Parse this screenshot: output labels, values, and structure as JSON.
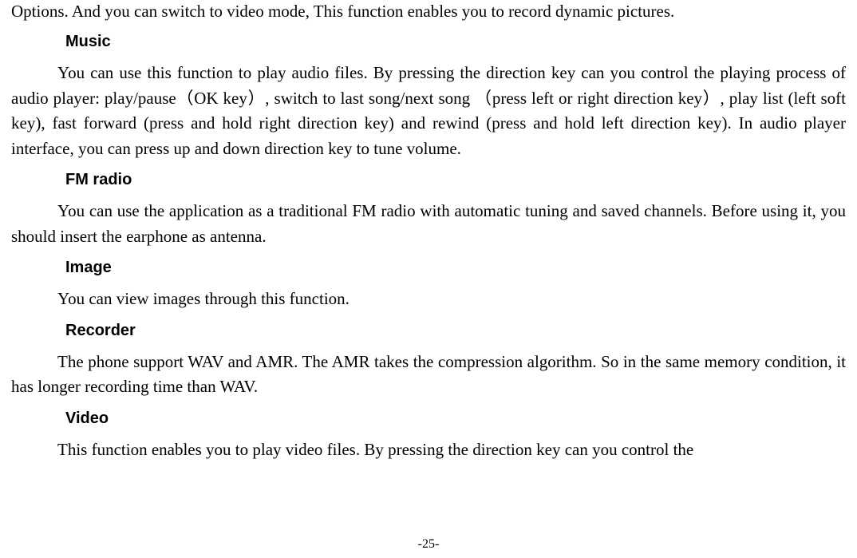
{
  "page": {
    "topPartialParagraph": "Options. And you can switch to video mode, This function enables you to record dynamic pictures.",
    "sections": [
      {
        "heading": "Music",
        "body": "You can use this function to play audio files. By pressing the direction key can you control the playing process of audio player: play/pause（OK key）, switch to last song/next song （press left or right direction key）, play list (left soft key), fast forward (press and hold right direction key) and rewind (press and hold left direction key). In audio player interface, you can press up and down direction key to tune volume."
      },
      {
        "heading": "FM radio",
        "body": "You can use the application as a traditional FM radio with automatic tuning and saved channels. Before using it, you should insert the earphone as antenna."
      },
      {
        "heading": "Image",
        "body": "You can view images through this function."
      },
      {
        "heading": "Recorder",
        "body": "The phone support WAV and AMR. The AMR takes the compression algorithm. So in the same memory condition, it has longer recording time than WAV."
      },
      {
        "heading": "Video",
        "body": "This function enables you to play video files. By pressing the direction key can you control the"
      }
    ],
    "pageNumber": "-25-"
  },
  "styles": {
    "bodyFontFamily": "Times New Roman",
    "headingFontFamily": "Arial",
    "bodyFontSize": 21,
    "headingFontSize": 20,
    "pageNumberFontSize": 16,
    "textColor": "#000000",
    "backgroundColor": "#ffffff",
    "textIndent": 58,
    "headingIndent": 68,
    "lineHeight": 1.5
  }
}
